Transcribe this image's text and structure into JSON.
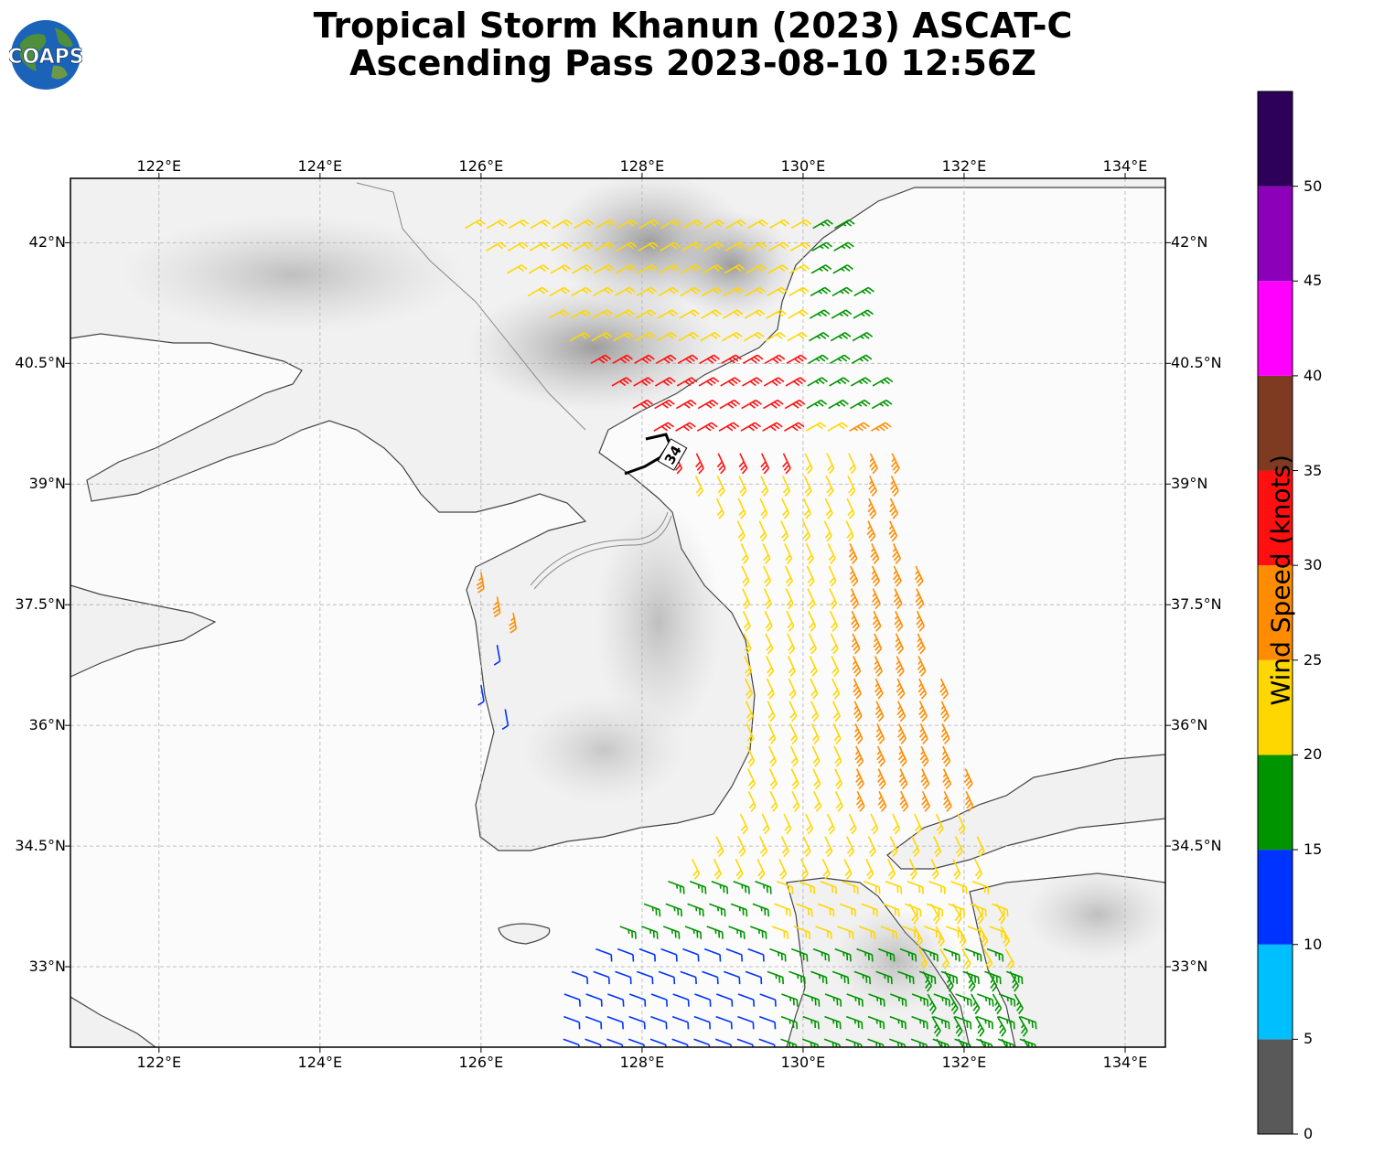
{
  "title": {
    "line1": "Tropical Storm Khanun (2023) ASCAT-C",
    "line2": "Ascending Pass 2023-08-10 12:56Z"
  },
  "logo": {
    "text": "COAPS",
    "icon": "globe-logo-icon"
  },
  "map": {
    "lon_range": [
      120.9,
      134.5
    ],
    "lat_range": [
      32.0,
      42.8
    ],
    "lon_ticks": [
      "122°E",
      "124°E",
      "126°E",
      "128°E",
      "130°E",
      "132°E",
      "134°E"
    ],
    "lat_ticks": [
      "42°N",
      "40.5°N",
      "39°N",
      "37.5°N",
      "36°N",
      "34.5°N",
      "33°N"
    ],
    "grid": true,
    "wind_radius_label": "34",
    "background": "grayscale topography"
  },
  "colorbar": {
    "label": "Wind Speed (knots)",
    "ticks": [
      "0",
      "5",
      "10",
      "15",
      "20",
      "25",
      "30",
      "35",
      "40",
      "45",
      "50"
    ],
    "bins": [
      {
        "range": [
          0,
          5
        ],
        "color": "#595959"
      },
      {
        "range": [
          5,
          10
        ],
        "color": "#00bfff"
      },
      {
        "range": [
          10,
          15
        ],
        "color": "#0033ff"
      },
      {
        "range": [
          15,
          20
        ],
        "color": "#009400"
      },
      {
        "range": [
          20,
          25
        ],
        "color": "#ffd700"
      },
      {
        "range": [
          25,
          30
        ],
        "color": "#ff8c00"
      },
      {
        "range": [
          30,
          35
        ],
        "color": "#ff0f0f"
      },
      {
        "range": [
          35,
          40
        ],
        "color": "#7f3a22"
      },
      {
        "range": [
          40,
          45
        ],
        "color": "#ff00ff"
      },
      {
        "range": [
          45,
          50
        ],
        "color": "#8b00b8"
      },
      {
        "range": [
          50,
          55
        ],
        "color": "#2d005a"
      }
    ]
  }
}
